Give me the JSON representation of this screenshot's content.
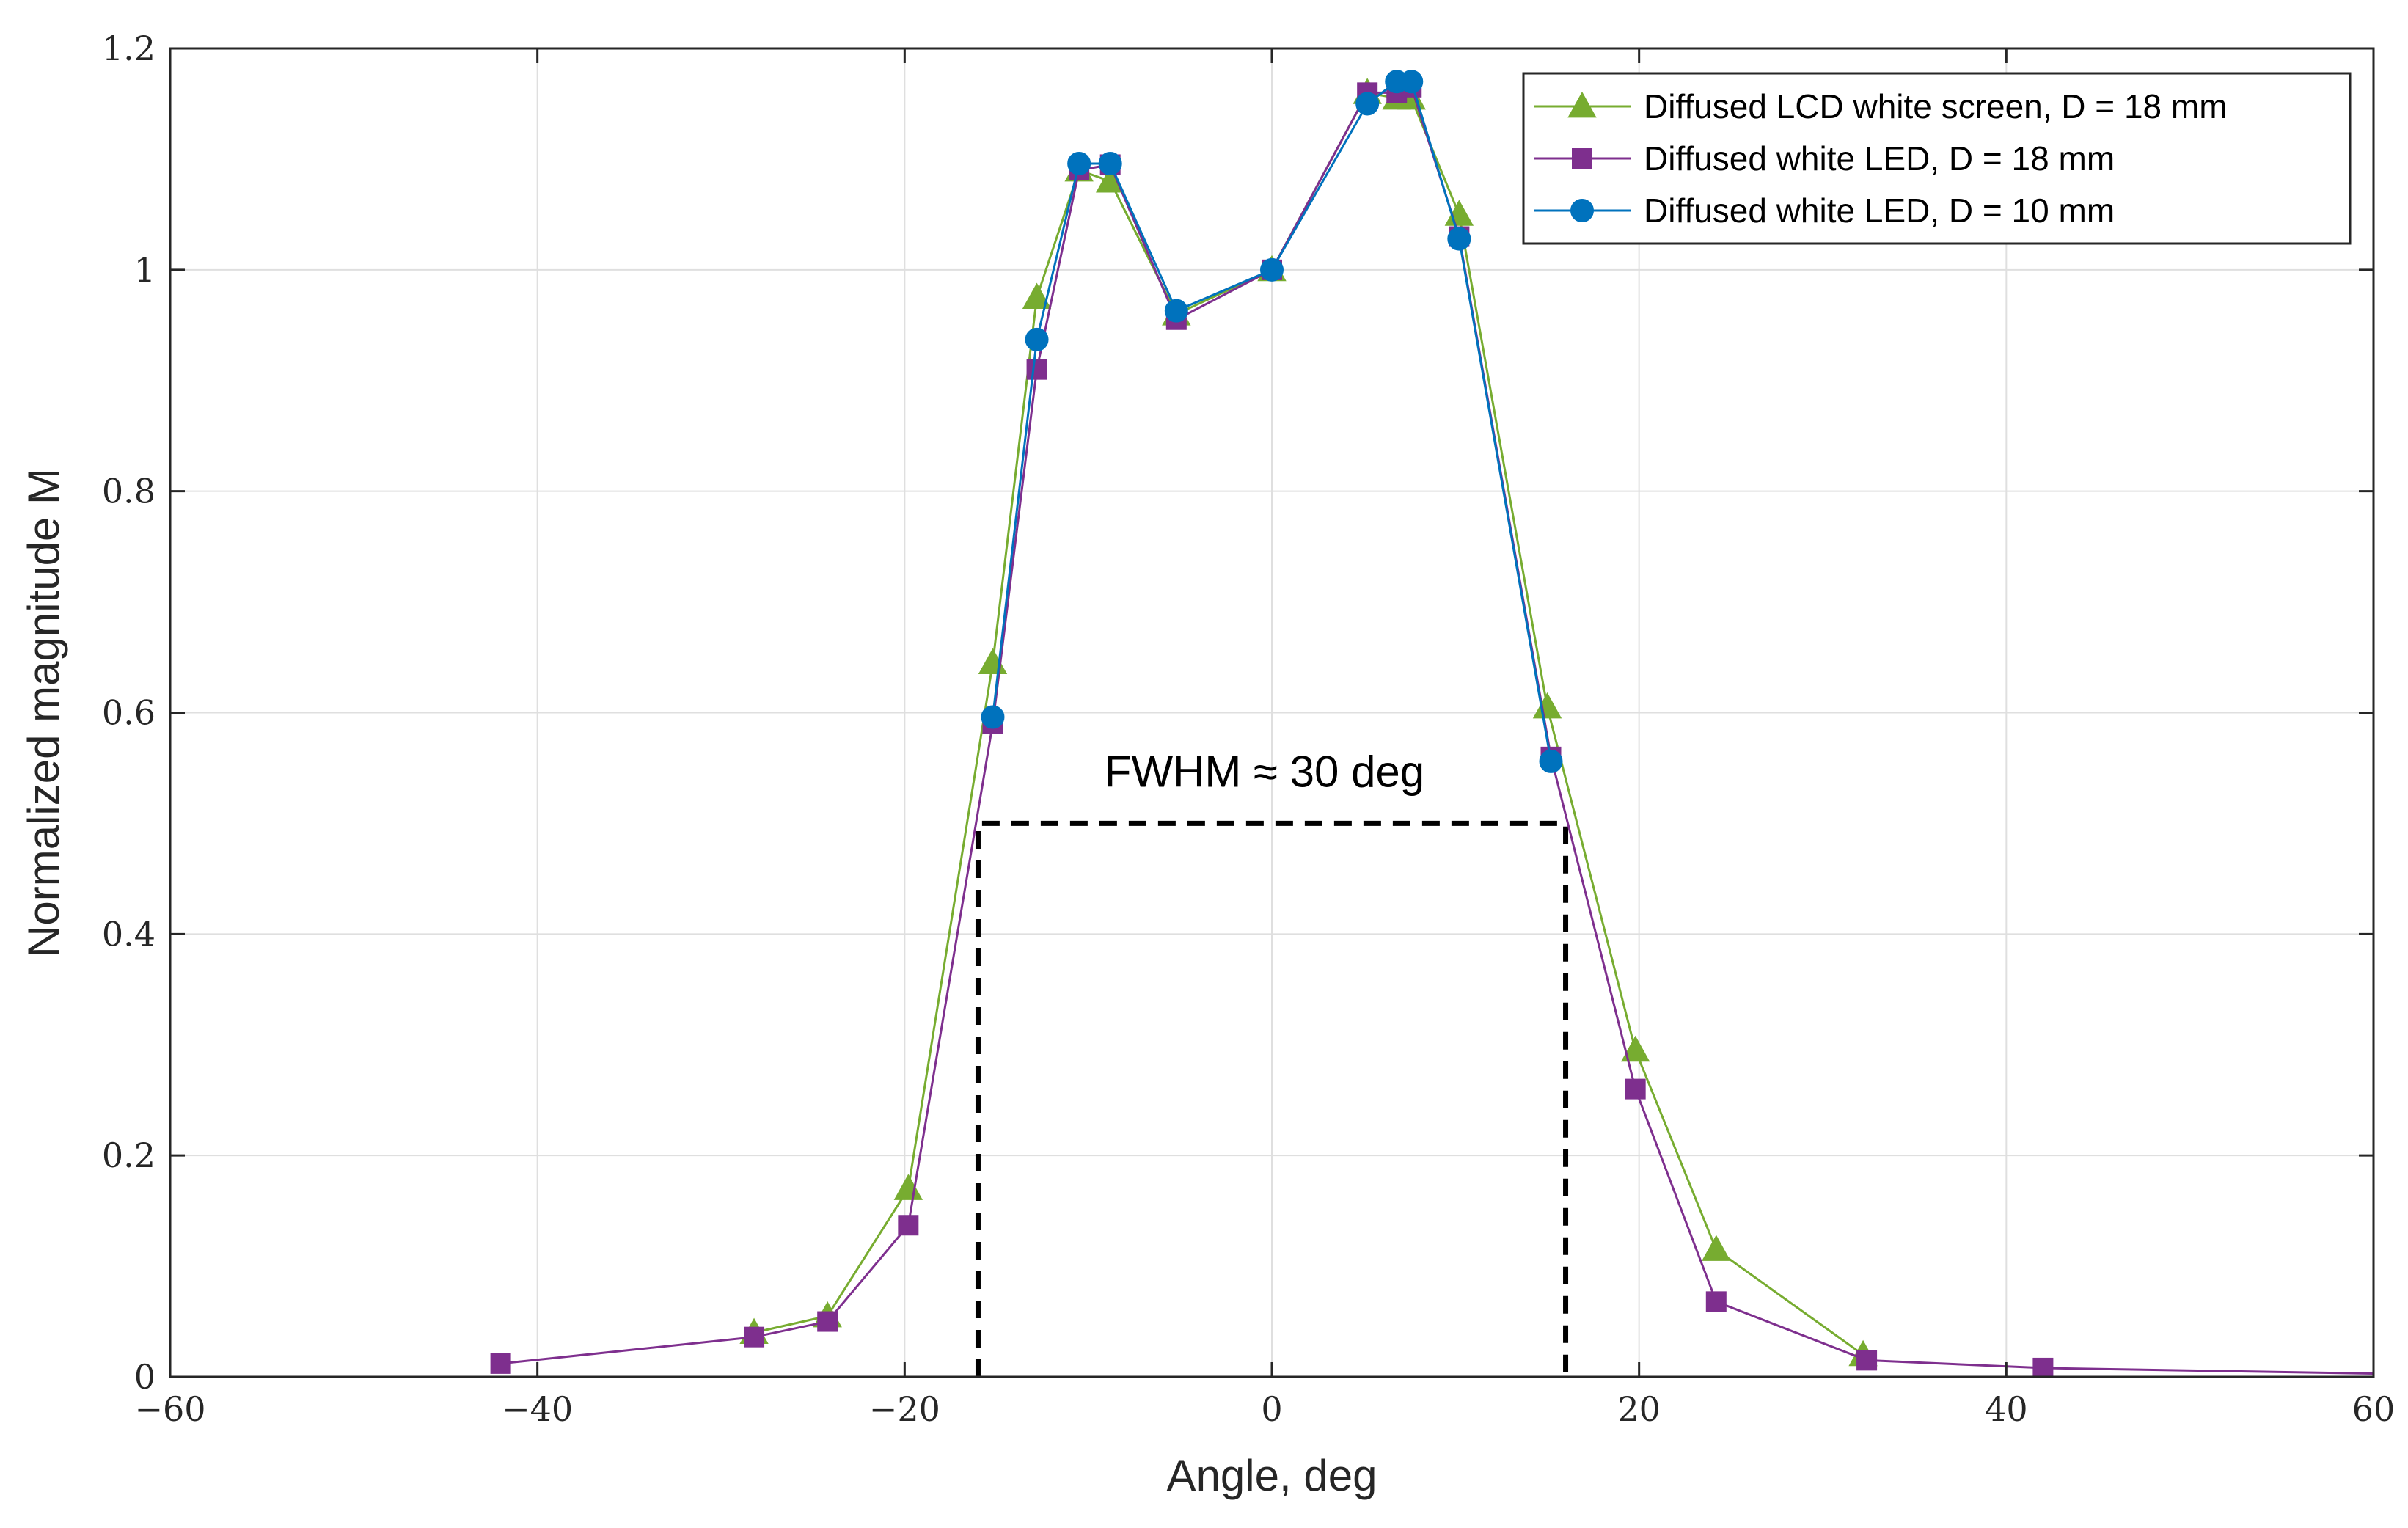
{
  "chart_data": {
    "type": "line",
    "title": "",
    "xlabel": "Angle, deg",
    "ylabel": "Normalized magnitude M",
    "xlim": [
      -60,
      60
    ],
    "ylim": [
      0,
      1.2
    ],
    "xticks": [
      -60,
      -40,
      -20,
      0,
      20,
      40,
      60
    ],
    "yticks": [
      0,
      0.2,
      0.4,
      0.6,
      0.8,
      1,
      1.2
    ],
    "xtick_labels": [
      "−60",
      "−40",
      "−20",
      "0",
      "20",
      "40",
      "60"
    ],
    "ytick_labels": [
      "0",
      "0.2",
      "0.4",
      "0.6",
      "0.8",
      "1",
      "1.2"
    ],
    "grid": true,
    "legend_position": "top-right",
    "series": [
      {
        "name": "Diffused LCD white screen, D = 18 mm",
        "color": "#77AC30",
        "marker": "triangle",
        "x": [
          -28.2,
          -24.2,
          -19.8,
          -15.2,
          -12.8,
          -10.5,
          -8.8,
          -5.2,
          0,
          5.2,
          6.8,
          7.6,
          10.2,
          15.0,
          19.8,
          24.2,
          32.2
        ],
        "y": [
          0.04,
          0.055,
          0.17,
          0.645,
          0.975,
          1.09,
          1.08,
          0.96,
          1.0,
          1.16,
          1.155,
          1.155,
          1.05,
          0.605,
          0.295,
          0.115,
          0.02
        ]
      },
      {
        "name": "Diffused white LED, D = 18 mm",
        "color": "#7E2F8E",
        "marker": "square",
        "x": [
          -42.0,
          -28.2,
          -24.2,
          -19.8,
          -15.2,
          -12.8,
          -10.5,
          -8.8,
          -5.2,
          0,
          5.2,
          6.8,
          7.6,
          10.2,
          15.2,
          19.8,
          24.2,
          32.4,
          42.0,
          60.0
        ],
        "y": [
          0.012,
          0.036,
          0.05,
          0.137,
          0.59,
          0.91,
          1.09,
          1.095,
          0.955,
          1.0,
          1.16,
          1.16,
          1.165,
          1.03,
          0.56,
          0.26,
          0.068,
          0.015,
          0.008,
          0.003
        ]
      },
      {
        "name": "Diffused white LED, D = 10 mm",
        "color": "#0072BD",
        "marker": "circle",
        "x": [
          -15.2,
          -12.8,
          -10.5,
          -8.8,
          -5.2,
          0,
          5.2,
          6.8,
          7.6,
          10.2,
          15.2
        ],
        "y": [
          0.596,
          0.937,
          1.096,
          1.096,
          0.963,
          1.0,
          1.15,
          1.17,
          1.17,
          1.028,
          0.556
        ]
      }
    ],
    "annotations": [
      {
        "text": "FWHM ≈ 30 deg",
        "box_x": [
          -16,
          16
        ],
        "box_y": [
          0,
          0.5
        ],
        "style": "dashed"
      }
    ]
  }
}
